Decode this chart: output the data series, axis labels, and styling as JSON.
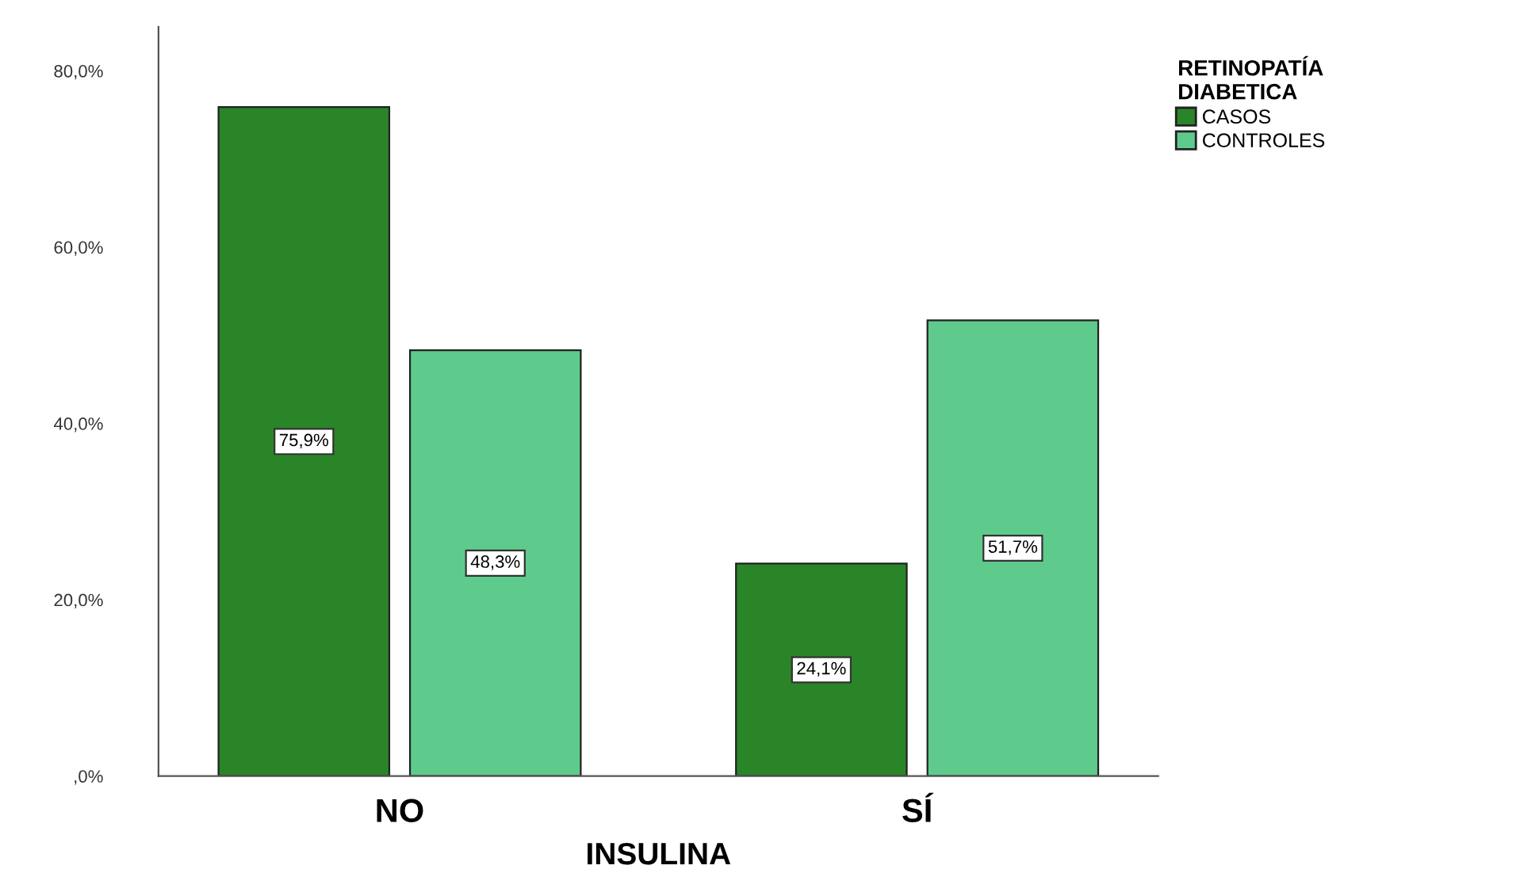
{
  "chart_data": {
    "type": "bar",
    "xlabel": "INSULINA",
    "legend_title": "RETINOPATÍA\nDIABETICA",
    "categories": [
      "NO",
      "SÍ"
    ],
    "series": [
      {
        "name": "CASOS",
        "color": "#2a8529",
        "values": [
          75.9,
          24.1
        ],
        "value_labels": [
          "75,9%",
          "24,1%"
        ]
      },
      {
        "name": "CONTROLES",
        "color": "#5ecb8c",
        "values": [
          48.3,
          51.7
        ],
        "value_labels": [
          "48,3%",
          "51,7%"
        ]
      }
    ],
    "ylim": [
      0,
      85
    ],
    "yticks": [
      {
        "value": 0,
        "label": ",0%"
      },
      {
        "value": 20,
        "label": "20,0%"
      },
      {
        "value": 40,
        "label": "40,0%"
      },
      {
        "value": 60,
        "label": "60,0%"
      },
      {
        "value": 80,
        "label": "80,0%"
      }
    ],
    "grid": false,
    "legend": "top right"
  }
}
